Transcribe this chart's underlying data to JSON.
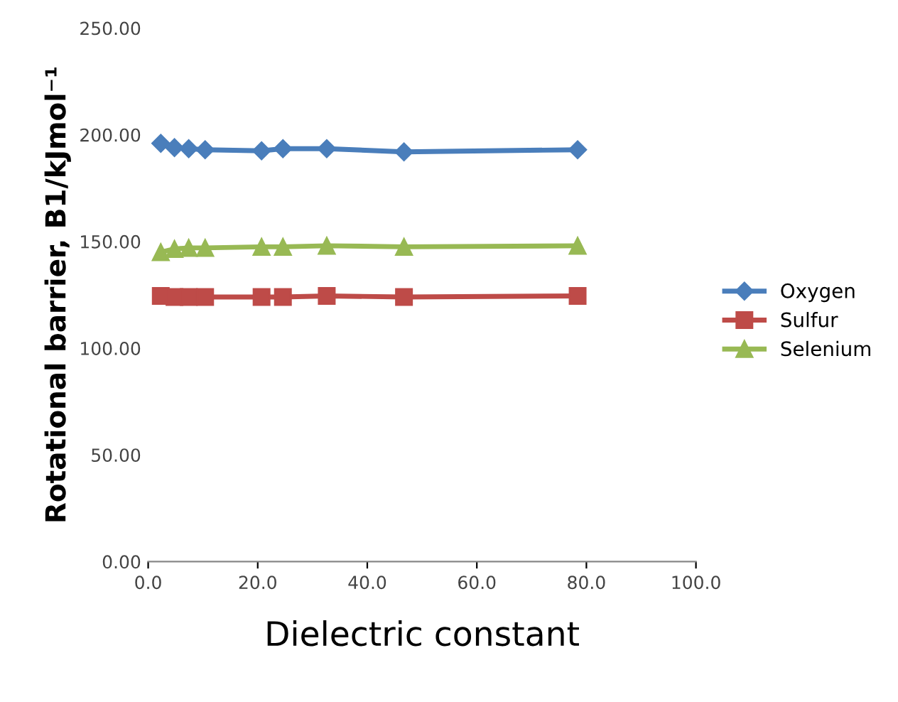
{
  "chart_data": {
    "type": "line",
    "xlabel": "Dielectric constant",
    "ylabel": "Rotational barrier, B1/kJmol⁻¹",
    "x": [
      2.3,
      4.8,
      7.4,
      10.4,
      20.7,
      24.6,
      32.6,
      46.7,
      78.4
    ],
    "series": [
      {
        "name": "Oxygen",
        "color": "#4a7ebb",
        "marker": "diamond",
        "values": [
          196,
          194,
          193.5,
          193,
          192.5,
          193.5,
          193.5,
          192,
          193
        ]
      },
      {
        "name": "Sulfur",
        "color": "#be4b48",
        "marker": "square",
        "values": [
          124.5,
          124,
          124,
          124,
          124,
          124,
          124.5,
          124,
          124.5
        ]
      },
      {
        "name": "Selenium",
        "color": "#98b954",
        "marker": "triangle",
        "values": [
          145,
          146.5,
          147,
          147,
          147.5,
          147.5,
          148,
          147.5,
          148
        ]
      }
    ],
    "xlim": [
      0,
      100
    ],
    "xticks": [
      {
        "value": 0,
        "label": "0.0"
      },
      {
        "value": 20,
        "label": "20.0"
      },
      {
        "value": 40,
        "label": "40.0"
      },
      {
        "value": 60,
        "label": "60.0"
      },
      {
        "value": 80,
        "label": "80.0"
      },
      {
        "value": 100,
        "label": "100.0"
      }
    ],
    "ylim": [
      0,
      250
    ],
    "yticks": [
      {
        "value": 0,
        "label": "0.00"
      },
      {
        "value": 50,
        "label": "50.00"
      },
      {
        "value": 100,
        "label": "100.00"
      },
      {
        "value": 150,
        "label": "150.00"
      },
      {
        "value": 200,
        "label": "200.00"
      },
      {
        "value": 250,
        "label": "250.00"
      }
    ],
    "legend": "right",
    "grid": false
  }
}
